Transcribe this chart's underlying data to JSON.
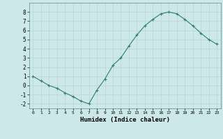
{
  "x": [
    0,
    1,
    2,
    3,
    4,
    5,
    6,
    7,
    8,
    9,
    10,
    11,
    12,
    13,
    14,
    15,
    16,
    17,
    18,
    19,
    20,
    21,
    22,
    23
  ],
  "y": [
    1.0,
    0.5,
    0.0,
    -0.3,
    -0.8,
    -1.2,
    -1.7,
    -2.0,
    -0.5,
    0.7,
    2.2,
    3.0,
    4.3,
    5.5,
    6.5,
    7.2,
    7.8,
    8.0,
    7.8,
    7.2,
    6.5,
    5.7,
    5.0,
    4.5
  ],
  "xlabel": "Humidex (Indice chaleur)",
  "xlim": [
    -0.5,
    23.5
  ],
  "ylim": [
    -2.5,
    9.0
  ],
  "yticks": [
    -2,
    -1,
    0,
    1,
    2,
    3,
    4,
    5,
    6,
    7,
    8
  ],
  "xticks": [
    0,
    1,
    2,
    3,
    4,
    5,
    6,
    7,
    8,
    9,
    10,
    11,
    12,
    13,
    14,
    15,
    16,
    17,
    18,
    19,
    20,
    21,
    22,
    23
  ],
  "line_color": "#2e7d6e",
  "marker": "+",
  "bg_color": "#cce8e8",
  "grid_color": "#b8d4d4",
  "spine_color": "#5a8a8a"
}
